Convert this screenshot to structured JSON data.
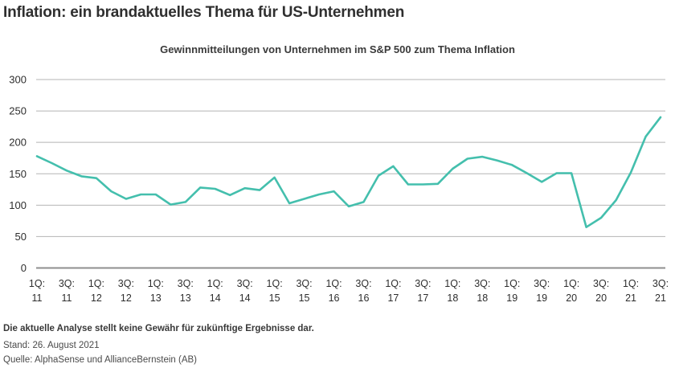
{
  "header": {
    "title": "Inflation: ein brandaktuelles Thema für US-Unternehmen"
  },
  "chart_data": {
    "type": "line",
    "title": "Gewinnmitteilungen von Unternehmen im S&P 500 zum Thema Inflation",
    "x": [
      "1Q11",
      "2Q11",
      "3Q11",
      "4Q11",
      "1Q12",
      "2Q12",
      "3Q12",
      "4Q12",
      "1Q13",
      "2Q13",
      "3Q13",
      "4Q13",
      "1Q14",
      "2Q14",
      "3Q14",
      "4Q14",
      "1Q15",
      "2Q15",
      "3Q15",
      "4Q15",
      "1Q16",
      "2Q16",
      "3Q16",
      "4Q16",
      "1Q17",
      "2Q17",
      "3Q17",
      "4Q17",
      "1Q18",
      "2Q18",
      "3Q18",
      "4Q18",
      "1Q19",
      "2Q19",
      "3Q19",
      "4Q19",
      "1Q20",
      "2Q20",
      "3Q20",
      "4Q20",
      "1Q21",
      "2Q21",
      "3Q21"
    ],
    "values": [
      178,
      167,
      155,
      146,
      143,
      122,
      110,
      117,
      117,
      101,
      105,
      128,
      126,
      116,
      127,
      124,
      144,
      103,
      110,
      117,
      122,
      98,
      105,
      147,
      162,
      133,
      133,
      134,
      158,
      174,
      177,
      171,
      164,
      151,
      137,
      151,
      151,
      65,
      80,
      108,
      152,
      209,
      240
    ],
    "ylim": [
      0,
      300
    ],
    "yticks": [
      0,
      50,
      100,
      150,
      200,
      250,
      300
    ],
    "xtick_labels": [
      {
        "q": "1Q:",
        "yr": "11"
      },
      {
        "q": "3Q:",
        "yr": "11"
      },
      {
        "q": "1Q:",
        "yr": "12"
      },
      {
        "q": "3Q:",
        "yr": "12"
      },
      {
        "q": "1Q:",
        "yr": "13"
      },
      {
        "q": "3Q:",
        "yr": "13"
      },
      {
        "q": "1Q:",
        "yr": "14"
      },
      {
        "q": "3Q:",
        "yr": "14"
      },
      {
        "q": "1Q:",
        "yr": "15"
      },
      {
        "q": "3Q:",
        "yr": "15"
      },
      {
        "q": "1Q:",
        "yr": "16"
      },
      {
        "q": "3Q:",
        "yr": "16"
      },
      {
        "q": "1Q:",
        "yr": "17"
      },
      {
        "q": "3Q:",
        "yr": "17"
      },
      {
        "q": "1Q:",
        "yr": "18"
      },
      {
        "q": "3Q:",
        "yr": "18"
      },
      {
        "q": "1Q:",
        "yr": "19"
      },
      {
        "q": "3Q:",
        "yr": "19"
      },
      {
        "q": "1Q:",
        "yr": "20"
      },
      {
        "q": "3Q:",
        "yr": "20"
      },
      {
        "q": "1Q:",
        "yr": "21"
      },
      {
        "q": "3Q:",
        "yr": "21"
      }
    ],
    "grid": true,
    "legend": "none",
    "line_color": "#44bfad",
    "grid_color": "#b5b5b5",
    "axis_color": "#8f8f8f",
    "text_color": "#2e2e2e"
  },
  "footer": {
    "disclaimer": "Die aktuelle Analyse stellt keine Gewähr für zukünftige Ergebnisse dar.",
    "stand": "Stand: 26. August 2021",
    "quelle": "Quelle: AlphaSense und AllianceBernstein (AB)"
  }
}
